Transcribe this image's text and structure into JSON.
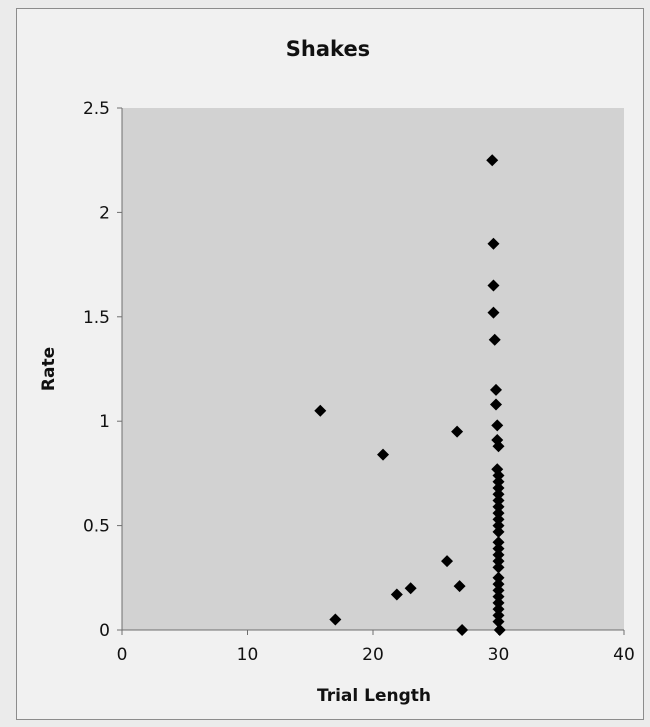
{
  "chart_data": {
    "type": "scatter",
    "title": "Shakes",
    "xlabel": "Trial Length",
    "ylabel": "Rate",
    "xlim": [
      0,
      40
    ],
    "ylim": [
      0,
      2.5
    ],
    "xticks": [
      "0",
      "10",
      "20",
      "30",
      "40"
    ],
    "yticks": [
      "0",
      "0.5",
      "1",
      "1.5",
      "2",
      "2.5"
    ],
    "grid": false,
    "legend": "none",
    "marker": "diamond",
    "colors": {
      "plot_area": "#d2d2d2",
      "marker": "#000000",
      "frame": "#f1f1f1"
    },
    "series": [
      {
        "points": [
          [
            15.8,
            1.05
          ],
          [
            17.0,
            0.05
          ],
          [
            20.8,
            0.84
          ],
          [
            21.9,
            0.17
          ],
          [
            23.0,
            0.2
          ],
          [
            25.9,
            0.33
          ],
          [
            26.7,
            0.95
          ],
          [
            26.9,
            0.21
          ],
          [
            27.1,
            0.0
          ],
          [
            29.5,
            2.25
          ],
          [
            29.6,
            1.85
          ],
          [
            29.6,
            1.65
          ],
          [
            29.6,
            1.52
          ],
          [
            29.7,
            1.39
          ],
          [
            29.8,
            1.15
          ],
          [
            29.8,
            1.08
          ],
          [
            29.9,
            0.98
          ],
          [
            29.9,
            0.91
          ],
          [
            30.0,
            0.88
          ],
          [
            29.9,
            0.77
          ],
          [
            30.0,
            0.74
          ],
          [
            30.0,
            0.71
          ],
          [
            30.0,
            0.68
          ],
          [
            30.0,
            0.65
          ],
          [
            30.0,
            0.62
          ],
          [
            30.0,
            0.59
          ],
          [
            30.0,
            0.56
          ],
          [
            30.0,
            0.53
          ],
          [
            30.0,
            0.5
          ],
          [
            30.0,
            0.47
          ],
          [
            30.0,
            0.42
          ],
          [
            30.0,
            0.39
          ],
          [
            30.0,
            0.36
          ],
          [
            30.0,
            0.33
          ],
          [
            30.0,
            0.3
          ],
          [
            30.0,
            0.25
          ],
          [
            30.0,
            0.22
          ],
          [
            30.0,
            0.19
          ],
          [
            30.0,
            0.16
          ],
          [
            30.0,
            0.13
          ],
          [
            30.0,
            0.1
          ],
          [
            30.0,
            0.07
          ],
          [
            30.0,
            0.04
          ],
          [
            30.1,
            0.0
          ]
        ]
      }
    ]
  }
}
